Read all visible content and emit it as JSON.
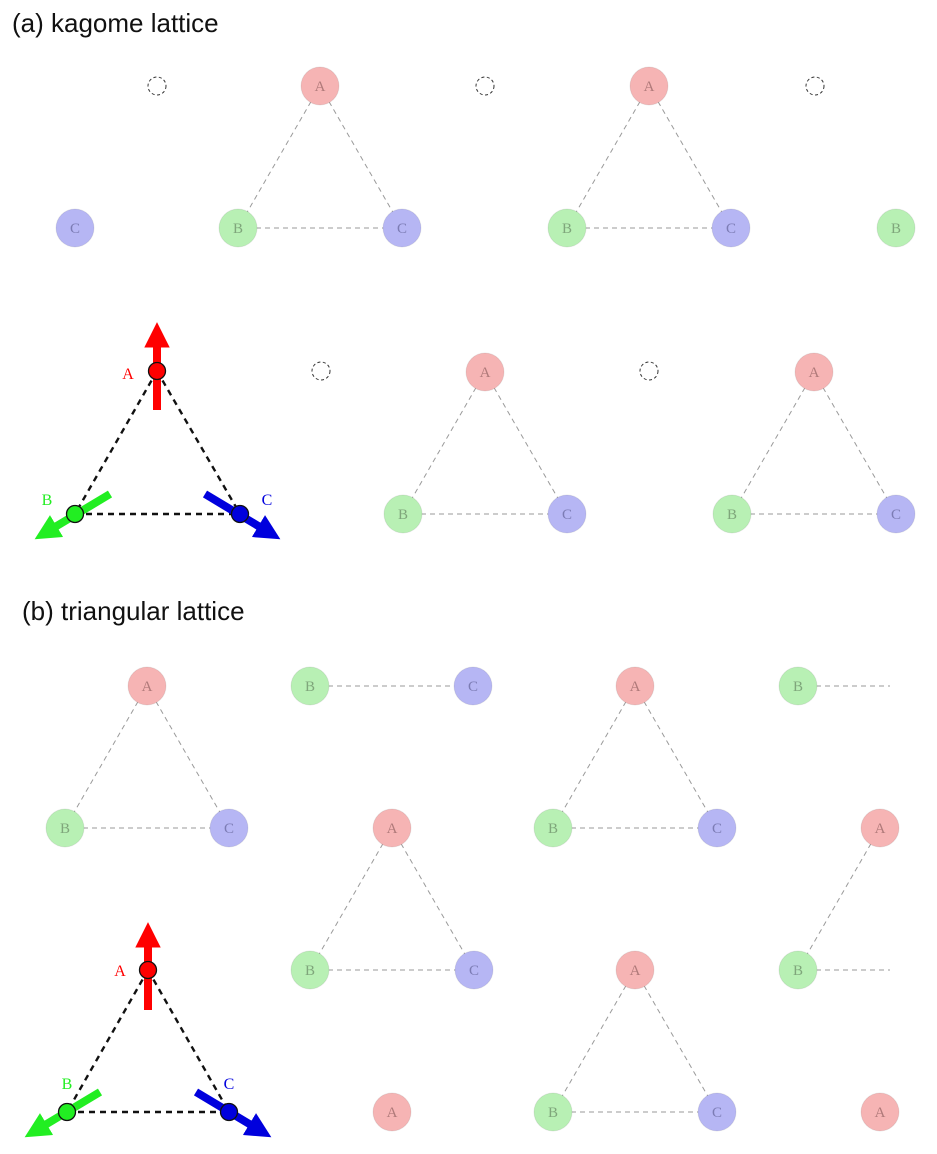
{
  "panels": {
    "kagome": {
      "caption": "(a) kagome lattice"
    },
    "triangular": {
      "caption": "(b) triangular lattice"
    }
  },
  "colors": {
    "node_A": "#f6b4b4",
    "node_B": "#b8f0b4",
    "node_C": "#b6b6f4",
    "label_A": "#b07a7a",
    "label_B": "#7fa67b",
    "label_C": "#7c7cb4",
    "bond": "#9a9a9a",
    "vacancy": "#333333",
    "spin_A": "#ff0000",
    "spin_B": "#22ee22",
    "spin_C": "#0000dd"
  },
  "sublattice_labels": {
    "A": "A",
    "B": "B",
    "C": "C"
  },
  "spin_labels": {
    "A": "A",
    "B": "B",
    "C": "C"
  }
}
